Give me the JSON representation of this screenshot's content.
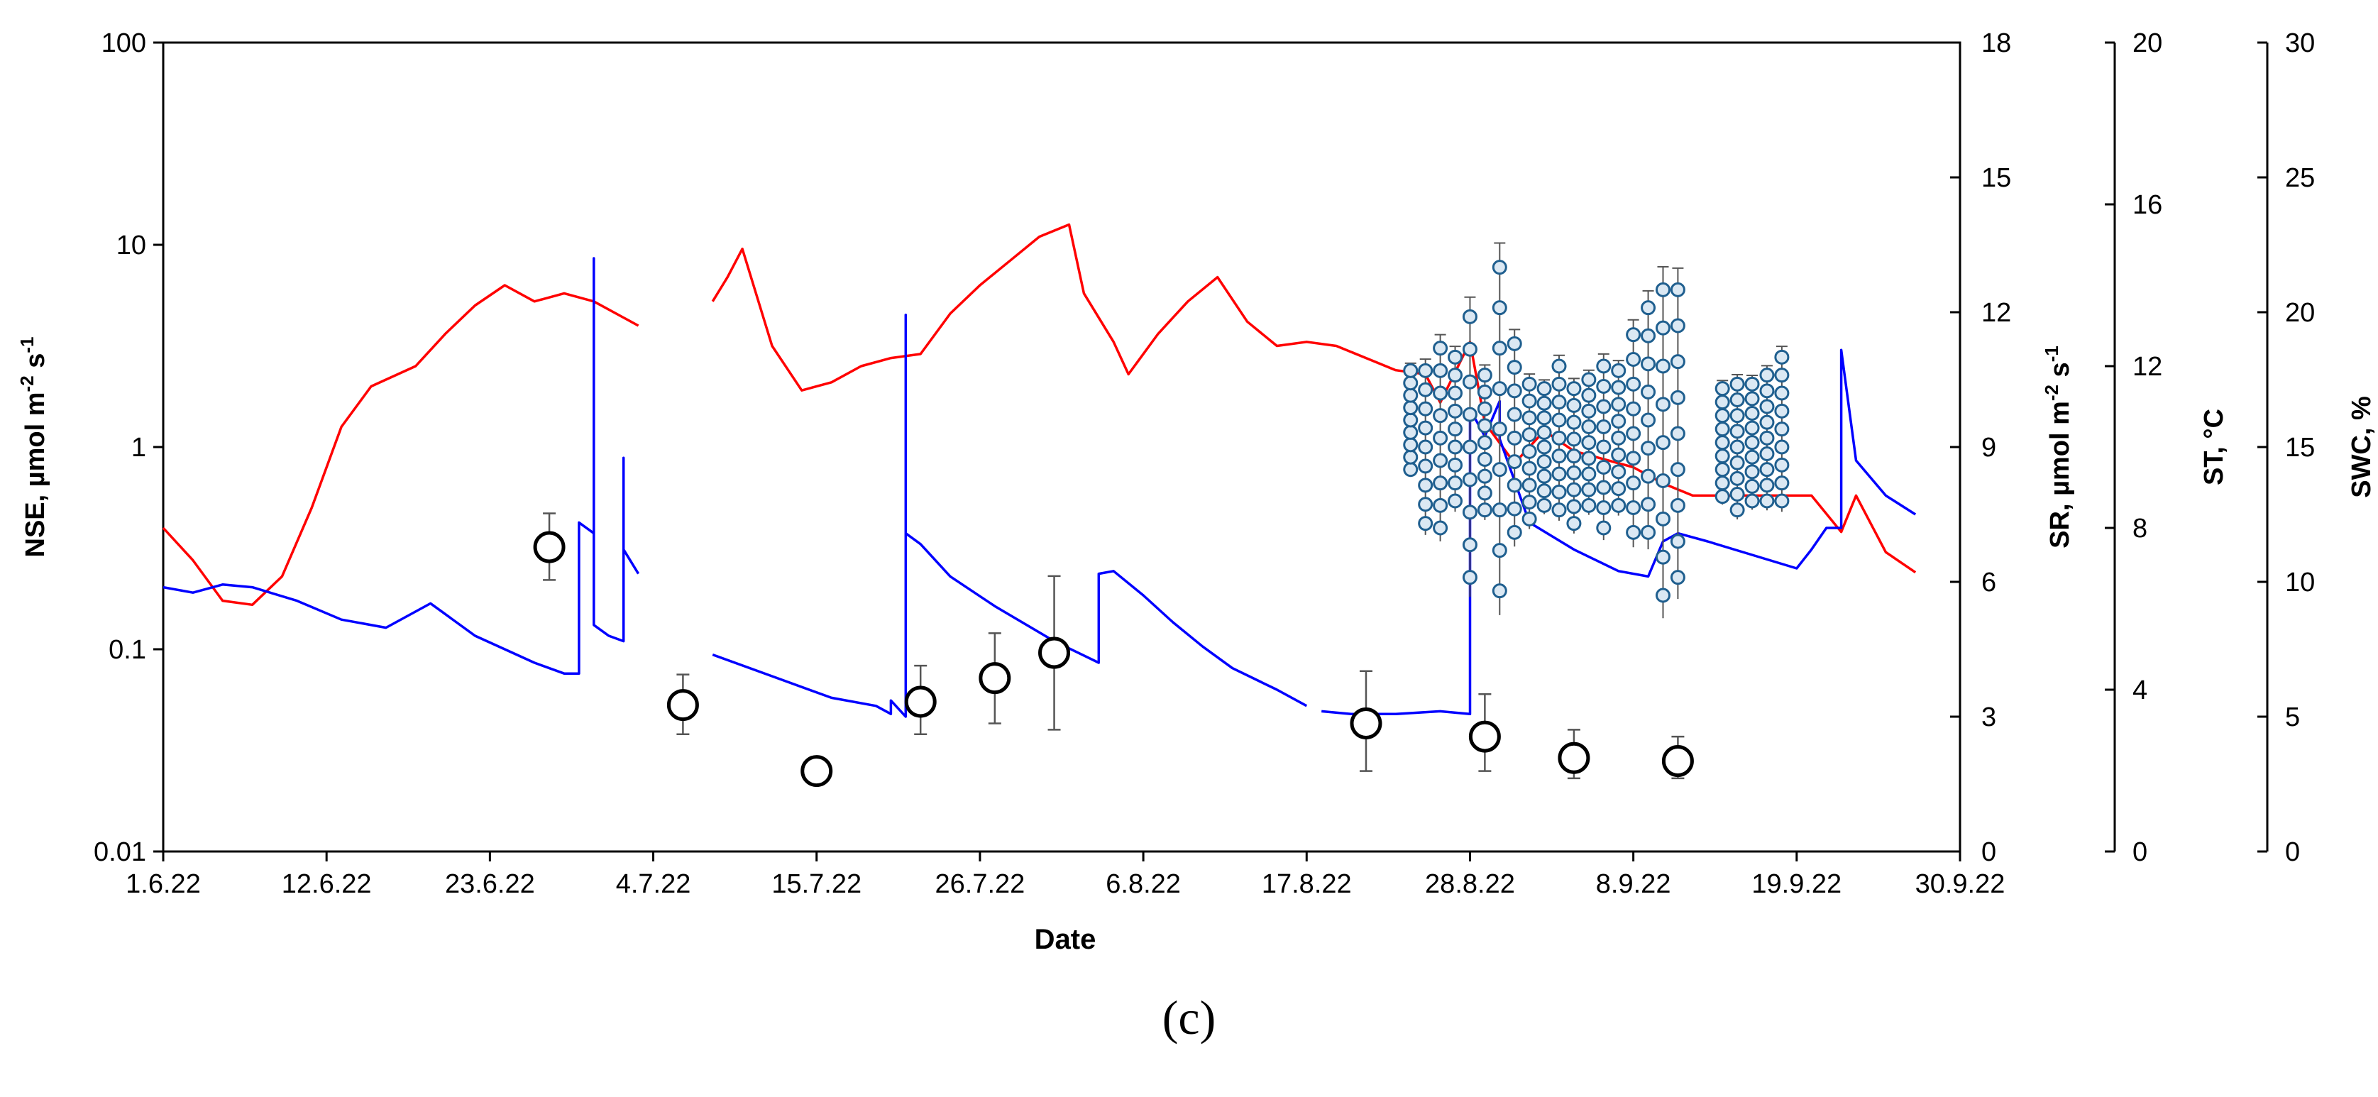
{
  "panel_label": "(c)",
  "colors": {
    "st_line": "#ff0000",
    "swc_line": "#0000ff",
    "sr_marker_fill": "#dbe8f3",
    "sr_marker_stroke": "#1f5f8f",
    "nse_marker": "#000000",
    "axes": "#000000",
    "error_bars": "#555555"
  },
  "chart_data": {
    "type": "line",
    "xlabel": "Date",
    "x_ticks": [
      "1.6.22",
      "12.6.22",
      "23.6.22",
      "4.7.22",
      "15.7.22",
      "26.7.22",
      "6.8.22",
      "17.8.22",
      "28.8.22",
      "8.9.22",
      "19.9.22",
      "30.9.22"
    ],
    "xlim": [
      "1.6.22",
      "30.9.22"
    ],
    "axes": {
      "nse": {
        "label": "NSE, µmol m-2 s-1",
        "label_parts": [
          "NSE, µmol m",
          "-2",
          " s",
          "-1"
        ],
        "scale": "log",
        "range": [
          0.01,
          100
        ],
        "ticks": [
          "0.01",
          "0.1",
          "1",
          "10",
          "100"
        ]
      },
      "sr": {
        "label": "SR, µmol m-2 s-1",
        "label_parts": [
          "SR, µmol m",
          "-2",
          " s",
          "-1"
        ],
        "range": [
          0,
          18
        ],
        "ticks": [
          "0",
          "3",
          "6",
          "9",
          "12",
          "15",
          "18"
        ]
      },
      "st": {
        "label": "ST, °C",
        "range": [
          0,
          20
        ],
        "ticks": [
          "0",
          "4",
          "8",
          "12",
          "16",
          "20"
        ]
      },
      "swc": {
        "label": "SWC, %",
        "range": [
          0,
          30
        ],
        "ticks": [
          "0",
          "5",
          "10",
          "15",
          "20",
          "25",
          "30"
        ]
      }
    },
    "series": [
      {
        "axis": "nse",
        "kind": "points_with_error",
        "x": [
          "27.6.22",
          "6.7.22",
          "15.7.22",
          "22.7.22",
          "27.7.22",
          "31.7.22",
          "21.8.22",
          "29.8.22",
          "4.9.22",
          "11.9.22"
        ],
        "values": [
          0.32,
          0.053,
          0.025,
          0.055,
          0.072,
          0.096,
          0.043,
          0.037,
          0.029,
          0.028
        ],
        "err_low": [
          0.22,
          0.038,
          0.025,
          0.038,
          0.043,
          0.04,
          0.025,
          0.025,
          0.023,
          0.023
        ],
        "err_high": [
          0.47,
          0.075,
          0.025,
          0.083,
          0.12,
          0.23,
          0.078,
          0.06,
          0.04,
          0.037
        ]
      },
      {
        "axis": "st",
        "kind": "line",
        "color": "#ff0000",
        "segments": [
          {
            "x": [
              "1.6.22",
              "3.6.22",
              "5.6.22",
              "7.6.22",
              "9.6.22",
              "11.6.22",
              "13.6.22",
              "15.6.22",
              "18.6.22",
              "20.6.22",
              "22.6.22",
              "24.6.22",
              "26.6.22",
              "28.6.22",
              "30.6.22",
              "2.7.22",
              "3.7.22"
            ],
            "values": [
              8.0,
              7.2,
              6.2,
              6.1,
              6.8,
              8.5,
              10.5,
              11.5,
              12.0,
              12.8,
              13.5,
              14.0,
              13.6,
              13.8,
              13.6,
              13.2,
              13.0
            ]
          },
          {
            "x": [
              "8.7.22",
              "9.7.22",
              "10.7.22",
              "12.7.22",
              "14.7.22",
              "16.7.22",
              "18.7.22",
              "20.7.22",
              "22.7.22",
              "24.7.22",
              "26.7.22",
              "28.7.22",
              "30.7.22",
              "1.8.22",
              "2.8.22",
              "4.8.22",
              "5.8.22",
              "7.8.22",
              "9.8.22",
              "11.8.22",
              "13.8.22",
              "15.8.22",
              "17.8.22",
              "19.8.22",
              "21.8.22",
              "23.8.22",
              "25.8.22",
              "26.8.22",
              "28.8.22",
              "29.8.22",
              "31.8.22",
              "2.9.22",
              "4.9.22",
              "6.9.22",
              "8.9.22",
              "10.9.22",
              "12.9.22",
              "14.9.22",
              "16.9.22",
              "18.9.22",
              "20.9.22",
              "22.9.22",
              "23.9.22",
              "25.9.22",
              "27.9.22"
            ],
            "values": [
              13.6,
              14.2,
              14.9,
              12.5,
              11.4,
              11.6,
              12.0,
              12.2,
              12.3,
              13.3,
              14.0,
              14.6,
              15.2,
              15.5,
              13.8,
              12.6,
              11.8,
              12.8,
              13.6,
              14.2,
              13.1,
              12.5,
              12.6,
              12.5,
              12.2,
              11.9,
              11.8,
              11.1,
              12.6,
              10.6,
              9.6,
              10.4,
              9.9,
              9.7,
              9.5,
              9.1,
              8.8,
              8.8,
              8.8,
              8.8,
              8.8,
              7.9,
              8.8,
              7.4,
              6.9
            ]
          }
        ]
      },
      {
        "axis": "swc",
        "kind": "line",
        "color": "#0000ff",
        "segments": [
          {
            "x": [
              "1.6.22",
              "3.6.22",
              "5.6.22",
              "7.6.22",
              "10.6.22",
              "13.6.22",
              "16.6.22",
              "19.6.22",
              "20.6.22",
              "22.6.22",
              "24.6.22",
              "26.6.22",
              "28.6.22",
              "29.6.22",
              "29.6.22",
              "30.6.22",
              "30.6.22",
              "30.6.22",
              "1.7.22",
              "2.7.22",
              "2.7.22",
              "2.7.22",
              "3.7.22"
            ],
            "values": [
              9.8,
              9.6,
              9.9,
              9.8,
              9.3,
              8.6,
              8.3,
              9.2,
              8.8,
              8.0,
              7.5,
              7.0,
              6.6,
              6.6,
              12.2,
              11.8,
              22.0,
              8.4,
              8.0,
              7.8,
              14.6,
              11.2,
              10.3
            ]
          },
          {
            "x": [
              "8.7.22",
              "12.7.22",
              "16.7.22",
              "19.7.22",
              "20.7.22",
              "20.7.22",
              "21.7.22",
              "21.7.22",
              "21.7.22",
              "22.7.22",
              "24.7.22",
              "27.7.22",
              "31.7.22",
              "3.8.22",
              "3.8.22",
              "4.8.22",
              "6.8.22",
              "8.8.22",
              "10.8.22",
              "12.8.22",
              "15.8.22",
              "17.8.22"
            ],
            "values": [
              7.3,
              6.5,
              5.7,
              5.4,
              5.1,
              5.6,
              5.0,
              19.9,
              11.8,
              11.4,
              10.2,
              9.1,
              7.8,
              7.0,
              10.3,
              10.4,
              9.5,
              8.5,
              7.6,
              6.8,
              6.0,
              5.4
            ]
          },
          {
            "x": [
              "18.8.22",
              "20.8.22",
              "23.8.22",
              "26.8.22",
              "28.8.22",
              "28.8.22",
              "28.8.22",
              "29.8.22",
              "30.8.22",
              "30.8.22",
              "1.9.22",
              "4.9.22",
              "7.9.22",
              "9.9.22",
              "10.9.22",
              "11.9.22",
              "13.9.22",
              "16.9.22",
              "19.9.22",
              "20.9.22",
              "21.9.22",
              "22.9.22",
              "22.9.22",
              "23.9.22",
              "25.9.22",
              "27.9.22"
            ],
            "values": [
              5.2,
              5.1,
              5.1,
              5.2,
              5.1,
              8.2,
              16.4,
              15.4,
              16.7,
              15.3,
              12.2,
              11.2,
              10.4,
              10.2,
              11.5,
              11.8,
              11.5,
              11.0,
              10.5,
              11.2,
              12.0,
              12.0,
              18.6,
              14.5,
              13.2,
              12.5
            ]
          }
        ]
      },
      {
        "axis": "sr",
        "kind": "points_with_error",
        "note_visible": false,
        "x": [
          "24.8.22",
          "25.8.22",
          "26.8.22",
          "27.8.22",
          "28.8.22",
          "29.8.22",
          "30.8.22",
          "31.8.22",
          "1.9.22",
          "2.9.22",
          "3.9.22",
          "4.9.22",
          "5.9.22",
          "6.9.22",
          "7.9.22",
          "8.9.22",
          "9.9.22",
          "10.9.22",
          "11.9.22",
          "14.9.22",
          "15.9.22",
          "16.9.22",
          "17.9.22",
          "18.9.22"
        ],
        "values": [
          9.6,
          9.0,
          9.2,
          9.4,
          9.0,
          9.1,
          9.4,
          9.2,
          8.9,
          9.0,
          9.2,
          8.8,
          9.1,
          9.0,
          9.2,
          9.3,
          9.6,
          9.1,
          9.3,
          9.1,
          9.0,
          9.1,
          9.2,
          9.4
        ],
        "spread": [
          1.1,
          1.7,
          2.0,
          1.6,
          2.9,
          1.5,
          3.6,
          2.1,
          1.5,
          1.3,
          1.6,
          1.5,
          1.4,
          1.8,
          1.5,
          2.2,
          2.5,
          3.4,
          3.2,
          1.2,
          1.4,
          1.3,
          1.4,
          1.6
        ]
      }
    ]
  }
}
